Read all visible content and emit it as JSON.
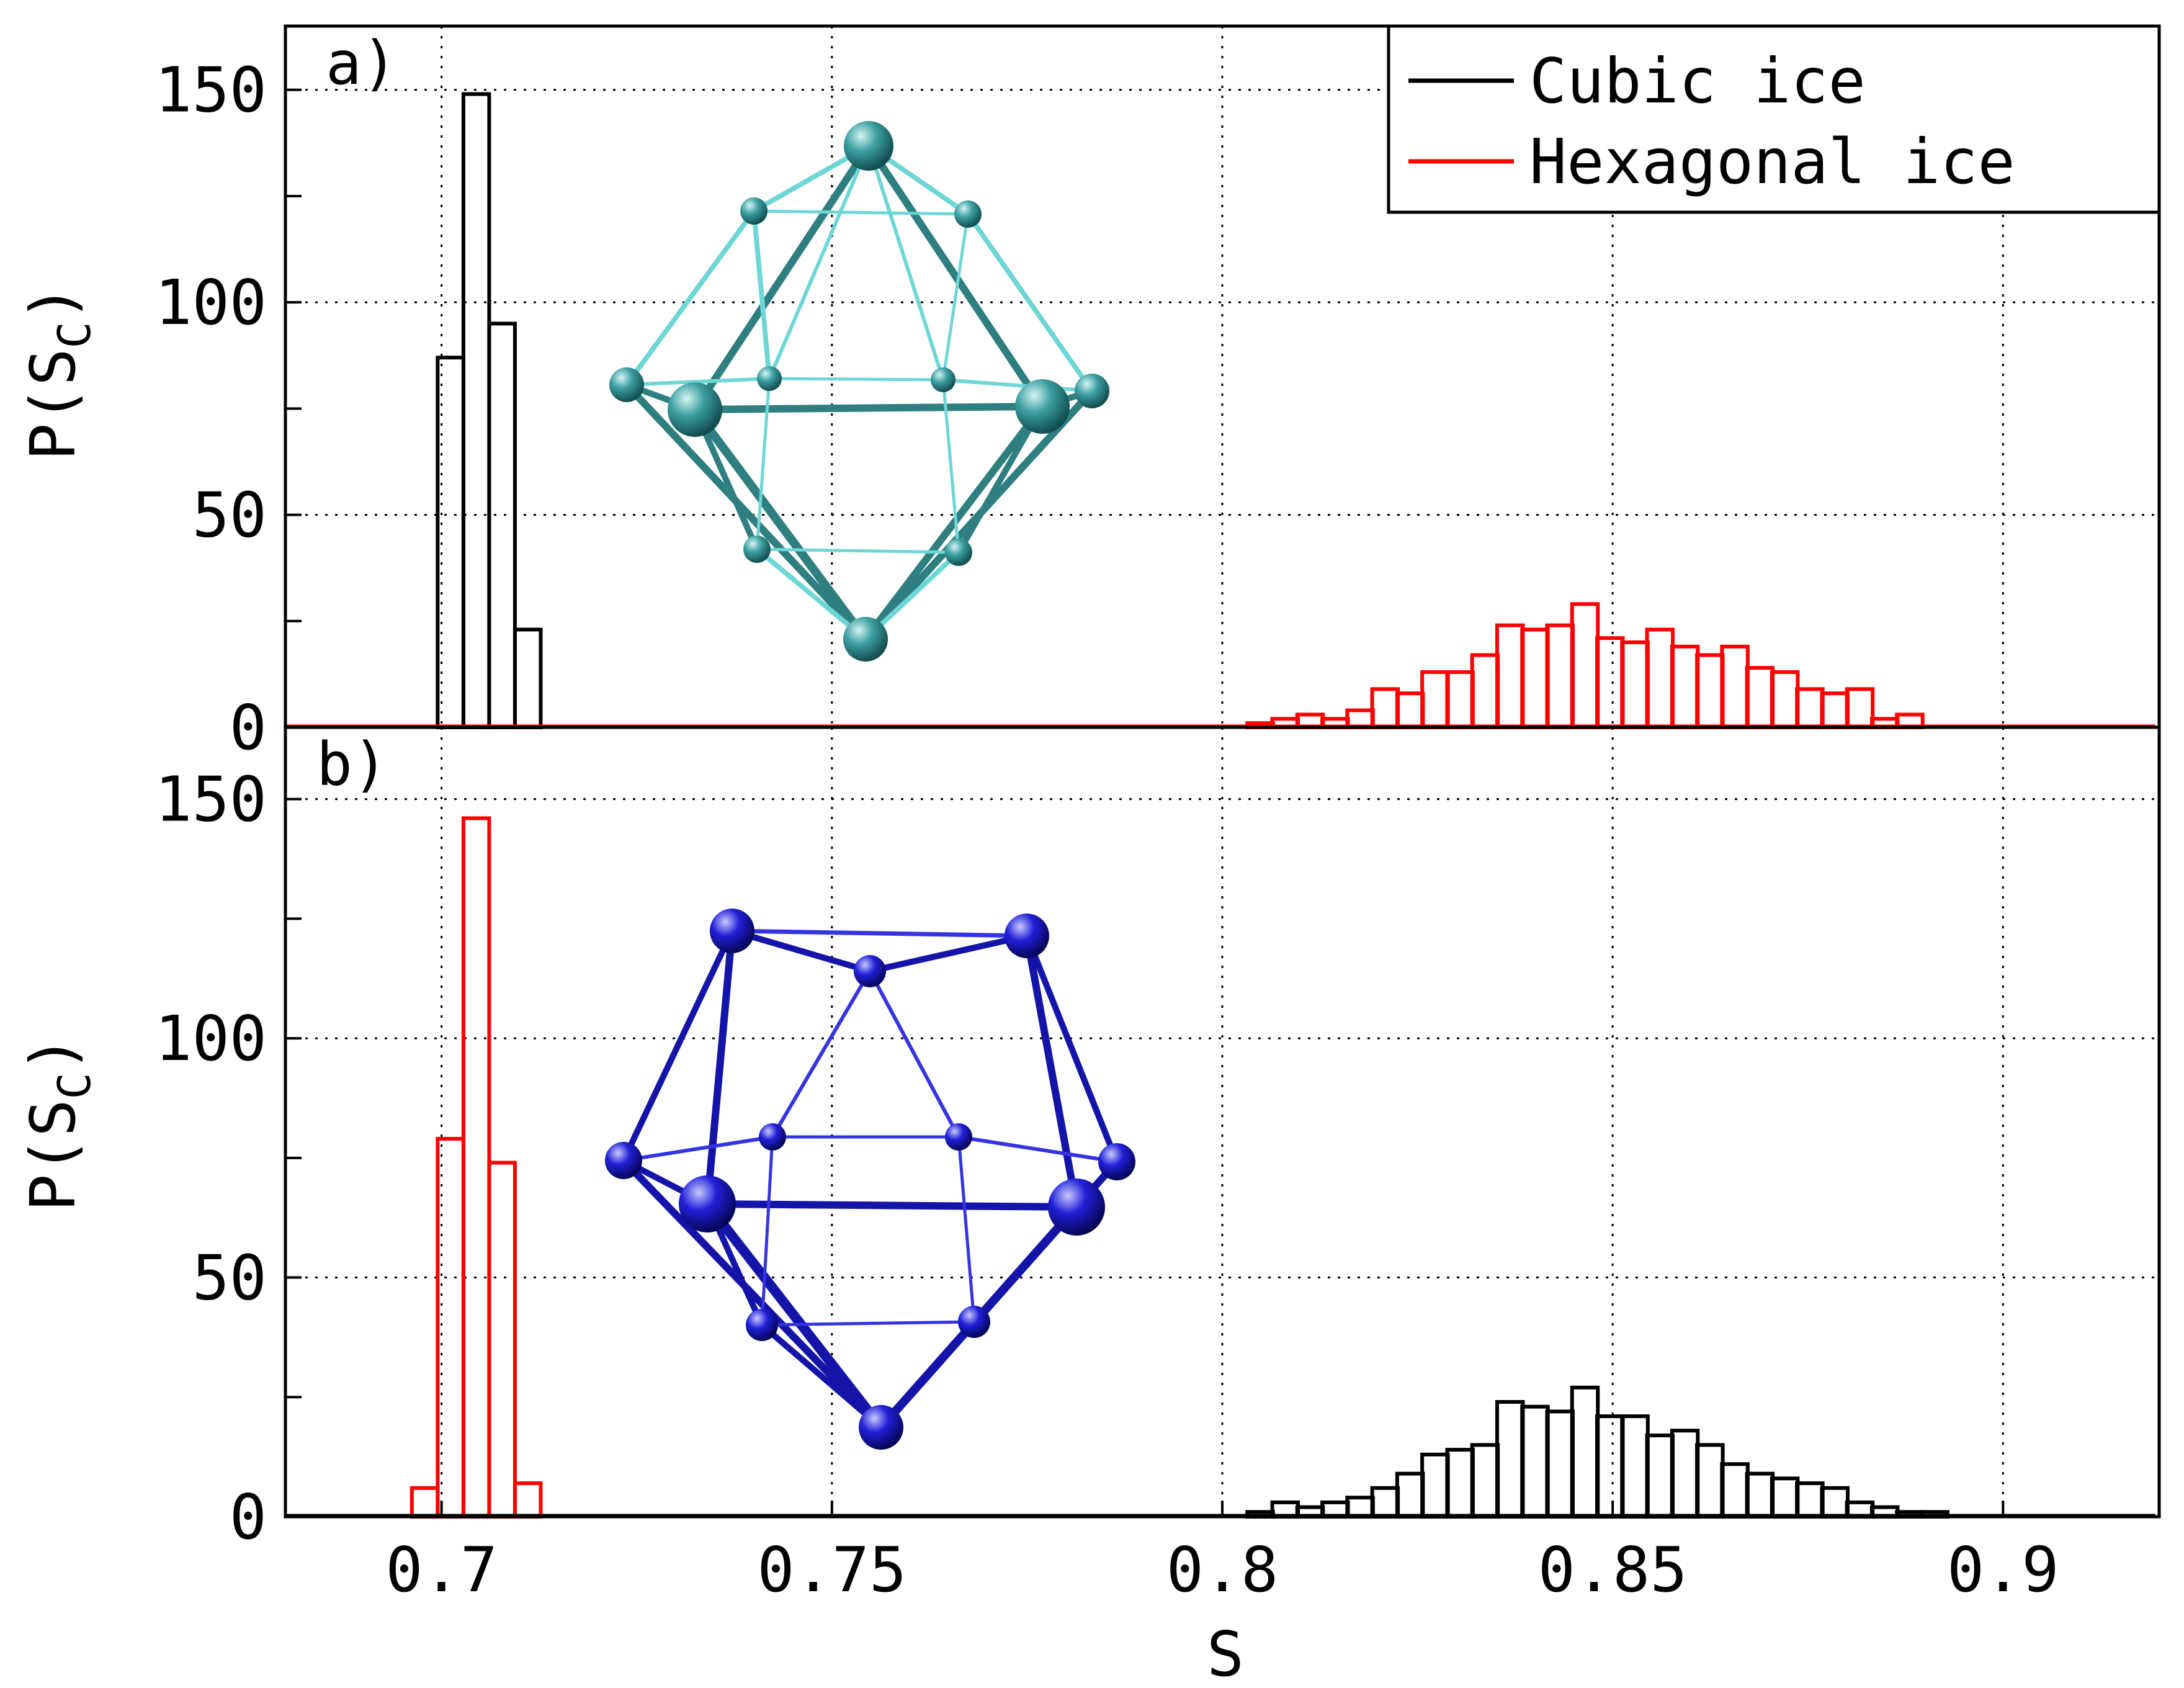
{
  "chart_data": [
    {
      "type": "bar",
      "panel_label": "a)",
      "ylabel": "P(S_C)",
      "xlabel": "",
      "xlim": [
        0.68,
        0.92
      ],
      "ylim": [
        0,
        165
      ],
      "xticks": [
        0.7,
        0.75,
        0.8,
        0.85,
        0.9
      ],
      "yticks": [
        0,
        50,
        100,
        150
      ],
      "bin_width": 0.0033,
      "legend": {
        "position": "top-right",
        "entries": [
          "Cubic ice",
          "Hexagonal ice"
        ]
      },
      "series": [
        {
          "name": "Cubic ice",
          "color": "#000000",
          "bin_starts": [
            0.6995,
            0.7028,
            0.7061,
            0.7094
          ],
          "values": [
            87,
            149,
            95,
            23
          ]
        },
        {
          "name": "Hexagonal ice",
          "color": "#ff0000",
          "bin_starts": [
            0.8032,
            0.8064,
            0.8096,
            0.8128,
            0.816,
            0.8192,
            0.8224,
            0.8256,
            0.8288,
            0.832,
            0.8352,
            0.8384,
            0.8416,
            0.8448,
            0.848,
            0.8512,
            0.8544,
            0.8576,
            0.8608,
            0.864,
            0.8672,
            0.8704,
            0.8736,
            0.8768,
            0.88,
            0.8832,
            0.8864
          ],
          "values": [
            1,
            2,
            3,
            2,
            4,
            9,
            8,
            13,
            13,
            17,
            24,
            23,
            24,
            29,
            21,
            20,
            23,
            19,
            17,
            19,
            14,
            13,
            9,
            8,
            9,
            2,
            3
          ]
        }
      ]
    },
    {
      "type": "bar",
      "panel_label": "b)",
      "ylabel": "P(S_C)",
      "xlabel": "S",
      "xlim": [
        0.68,
        0.92
      ],
      "ylim": [
        0,
        165
      ],
      "xticks": [
        0.7,
        0.75,
        0.8,
        0.85,
        0.9
      ],
      "yticks": [
        0,
        50,
        100,
        150
      ],
      "bin_width": 0.0033,
      "series": [
        {
          "name": "Hexagonal ice",
          "color": "#ff0000",
          "bin_starts": [
            0.6962,
            0.6995,
            0.7028,
            0.7061,
            0.7094
          ],
          "values": [
            6,
            79,
            146,
            74,
            7
          ]
        },
        {
          "name": "Cubic ice",
          "color": "#000000",
          "bin_starts": [
            0.8032,
            0.8064,
            0.8096,
            0.8128,
            0.816,
            0.8192,
            0.8224,
            0.8256,
            0.8288,
            0.832,
            0.8352,
            0.8384,
            0.8416,
            0.8448,
            0.848,
            0.8512,
            0.8544,
            0.8576,
            0.8608,
            0.864,
            0.8672,
            0.8704,
            0.8736,
            0.8768,
            0.88,
            0.8832,
            0.8864,
            0.8896
          ],
          "values": [
            1,
            3,
            2,
            3,
            4,
            6,
            9,
            13,
            14,
            15,
            24,
            23,
            22,
            27,
            21,
            21,
            17,
            18,
            15,
            11,
            9,
            8,
            7,
            6,
            3,
            2,
            1,
            1
          ]
        }
      ]
    }
  ],
  "colors": {
    "cubic": "#000000",
    "hexagonal": "#ff0000",
    "cage_a": "#3a9ea0",
    "cage_b": "#1c1cc8"
  },
  "insets": [
    {
      "name": "cage-a",
      "description_icon": "cubic-cage-icon"
    },
    {
      "name": "cage-b",
      "description_icon": "hexagonal-cage-icon"
    }
  ]
}
